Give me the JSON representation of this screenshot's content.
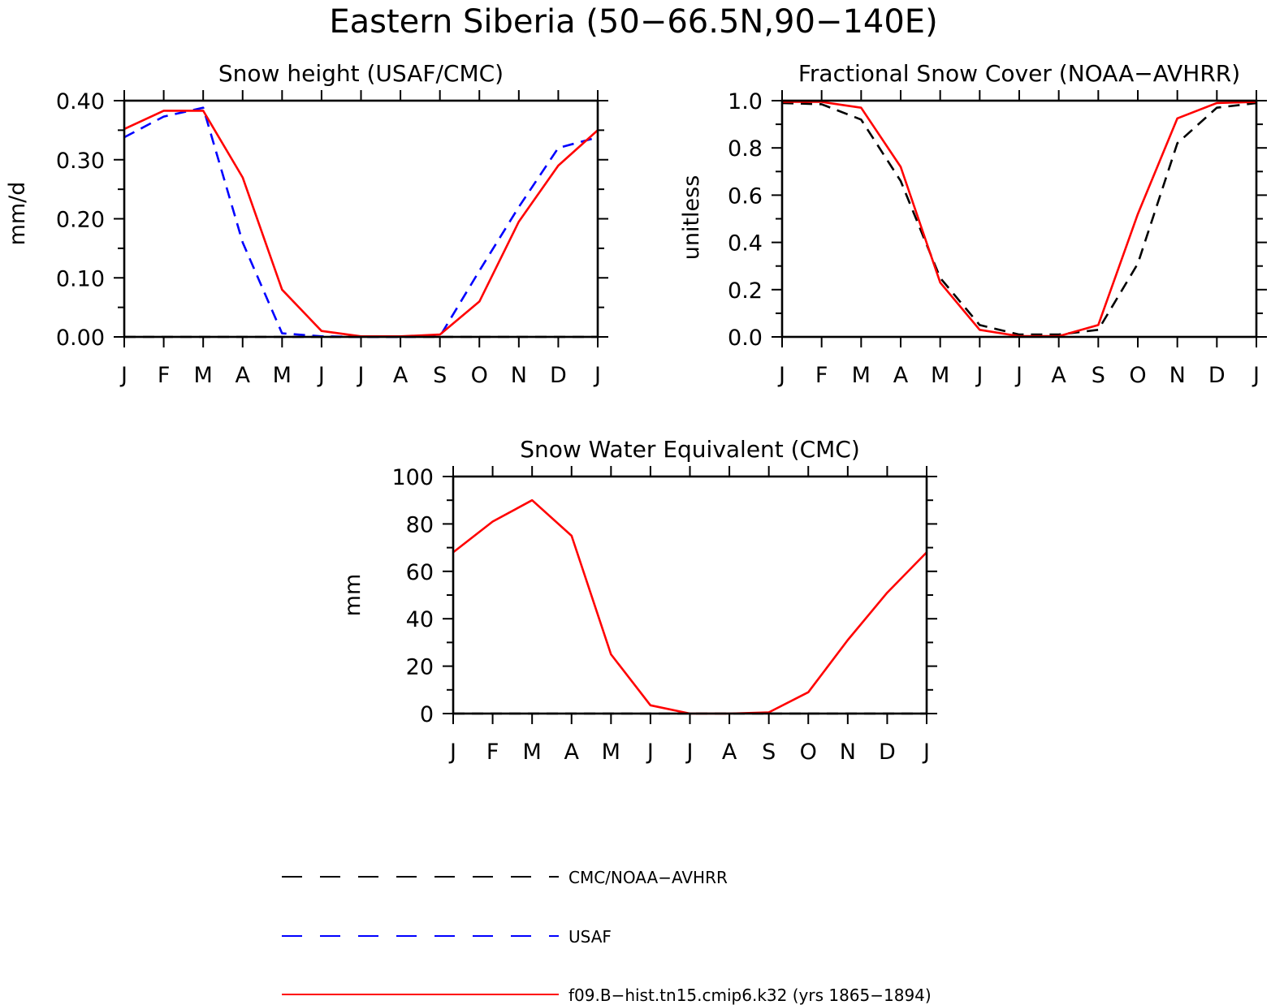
{
  "figure": {
    "title": "Eastern Siberia (50−66.5N,90−140E)"
  },
  "legend": [
    {
      "label": "CMC/NOAA−AVHRR",
      "color": "#000000",
      "dash": "dashed"
    },
    {
      "label": "USAF",
      "color": "#0000ff",
      "dash": "dashed"
    },
    {
      "label": "f09.B−hist.tn15.cmip6.k32 (yrs 1865−1894)",
      "color": "#ff0000",
      "dash": "solid"
    }
  ],
  "chart_data": [
    {
      "id": "snow-height",
      "type": "line",
      "title": "Snow height (USAF/CMC)",
      "xlabel": "",
      "ylabel": "mm/d",
      "categories": [
        "J",
        "F",
        "M",
        "A",
        "M",
        "J",
        "J",
        "A",
        "S",
        "O",
        "N",
        "D",
        "J"
      ],
      "ylim": [
        0,
        0.4
      ],
      "yticks": [
        "0.00",
        "0.10",
        "0.20",
        "0.30",
        "0.40"
      ],
      "ytick_values": [
        0,
        0.1,
        0.2,
        0.3,
        0.4
      ],
      "series": [
        {
          "name": "CMC/NOAA−AVHRR",
          "color": "#000000",
          "dash": "dashed",
          "values": [
            0,
            0,
            0,
            0,
            0,
            0,
            0,
            0,
            0,
            0,
            0,
            0,
            0
          ]
        },
        {
          "name": "USAF",
          "color": "#0000ff",
          "dash": "dashed",
          "values": [
            0.338,
            0.373,
            0.388,
            0.16,
            0.006,
            0.001,
            0,
            0,
            0.001,
            0.112,
            0.22,
            0.32,
            0.338
          ]
        },
        {
          "name": "f09.B−hist.tn15.cmip6.k32 (yrs 1865−1894)",
          "color": "#ff0000",
          "dash": "solid",
          "values": [
            0.352,
            0.383,
            0.383,
            0.27,
            0.08,
            0.01,
            0.001,
            0.001,
            0.004,
            0.06,
            0.195,
            0.29,
            0.35
          ]
        }
      ]
    },
    {
      "id": "fractional-snow-cover",
      "type": "line",
      "title": "Fractional Snow Cover (NOAA−AVHRR)",
      "xlabel": "",
      "ylabel": "unitless",
      "categories": [
        "J",
        "F",
        "M",
        "A",
        "M",
        "J",
        "J",
        "A",
        "S",
        "O",
        "N",
        "D",
        "J"
      ],
      "ylim": [
        0,
        1
      ],
      "yticks": [
        "0.0",
        "0.2",
        "0.4",
        "0.6",
        "0.8",
        "1.0"
      ],
      "ytick_values": [
        0,
        0.2,
        0.4,
        0.6,
        0.8,
        1.0
      ],
      "series": [
        {
          "name": "CMC/NOAA−AVHRR",
          "color": "#000000",
          "dash": "dashed",
          "values": [
            0.99,
            0.985,
            0.92,
            0.66,
            0.25,
            0.05,
            0.01,
            0.01,
            0.03,
            0.31,
            0.82,
            0.97,
            0.99
          ]
        },
        {
          "name": "f09.B−hist.tn15.cmip6.k32 (yrs 1865−1894)",
          "color": "#ff0000",
          "dash": "solid",
          "values": [
            0.995,
            0.995,
            0.97,
            0.72,
            0.23,
            0.03,
            0.003,
            0.003,
            0.05,
            0.52,
            0.925,
            0.99,
            0.995
          ]
        }
      ]
    },
    {
      "id": "snow-water-equivalent",
      "type": "line",
      "title": "Snow Water Equivalent (CMC)",
      "xlabel": "",
      "ylabel": "mm",
      "categories": [
        "J",
        "F",
        "M",
        "A",
        "M",
        "J",
        "J",
        "A",
        "S",
        "O",
        "N",
        "D",
        "J"
      ],
      "ylim": [
        0,
        100
      ],
      "yticks": [
        "0",
        "20",
        "40",
        "60",
        "80",
        "100"
      ],
      "ytick_values": [
        0,
        20,
        40,
        60,
        80,
        100
      ],
      "series": [
        {
          "name": "CMC/NOAA−AVHRR",
          "color": "#000000",
          "dash": "dashed",
          "values": [
            0,
            0,
            0,
            0,
            0,
            0,
            0,
            0,
            0,
            0,
            0,
            0,
            0
          ]
        },
        {
          "name": "f09.B−hist.tn15.cmip6.k32 (yrs 1865−1894)",
          "color": "#ff0000",
          "dash": "solid",
          "values": [
            68,
            81,
            90,
            75,
            25,
            3.5,
            0,
            0,
            0.5,
            9,
            31,
            51,
            68
          ]
        }
      ]
    }
  ]
}
